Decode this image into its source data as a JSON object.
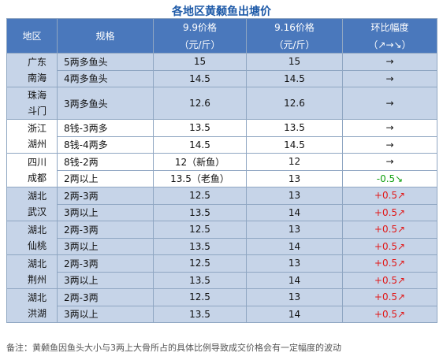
{
  "title": "各地区黄颡鱼出塘价",
  "headers": {
    "region": "地区",
    "spec": "规格",
    "price1_line1": "9.9价格",
    "price1_line2": "（元/斤）",
    "price2_line1": "9.16价格",
    "price2_line2": "（元/斤）",
    "change_line1": "环比幅度",
    "change_line2": "（↗→↘）"
  },
  "groups": [
    {
      "region": "广东\n南海",
      "shade": "blue",
      "rows": [
        {
          "spec": "5两多鱼头",
          "p1": "15",
          "p2": "15",
          "change": "→",
          "trend": "flat"
        },
        {
          "spec": "4两多鱼头",
          "p1": "14.5",
          "p2": "14.5",
          "change": "→",
          "trend": "flat"
        }
      ]
    },
    {
      "region": "珠海\n斗门",
      "shade": "blue",
      "rows": [
        {
          "spec": "3两多鱼头",
          "p1": "12.6",
          "p2": "12.6",
          "change": "→",
          "trend": "flat"
        }
      ]
    },
    {
      "region": "浙江\n湖州",
      "shade": "white",
      "rows": [
        {
          "spec": "8钱-3两多",
          "p1": "13.5",
          "p2": "13.5",
          "change": "→",
          "trend": "flat"
        },
        {
          "spec": "8钱-4两多",
          "p1": "14.5",
          "p2": "14.5",
          "change": "→",
          "trend": "flat"
        }
      ]
    },
    {
      "region": "四川\n成都",
      "shade": "white",
      "rows": [
        {
          "spec": "8钱-2两",
          "p1": "12（新鱼）",
          "p2": "12",
          "change": "→",
          "trend": "flat"
        },
        {
          "spec": "2两以上",
          "p1": "13.5（老鱼）",
          "p2": "13",
          "change": "-0.5↘",
          "trend": "down"
        }
      ]
    },
    {
      "region": "湖北\n武汉",
      "shade": "blue",
      "rows": [
        {
          "spec": "2两-3两",
          "p1": "12.5",
          "p2": "13",
          "change": "+0.5↗",
          "trend": "up"
        },
        {
          "spec": "3两以上",
          "p1": "13.5",
          "p2": "14",
          "change": "+0.5↗",
          "trend": "up"
        }
      ]
    },
    {
      "region": "湖北\n仙桃",
      "shade": "blue",
      "rows": [
        {
          "spec": "2两-3两",
          "p1": "12.5",
          "p2": "13",
          "change": "+0.5↗",
          "trend": "up"
        },
        {
          "spec": "3两以上",
          "p1": "13.5",
          "p2": "14",
          "change": "+0.5↗",
          "trend": "up"
        }
      ]
    },
    {
      "region": "湖北\n荆州",
      "shade": "blue",
      "rows": [
        {
          "spec": "2两-3两",
          "p1": "12.5",
          "p2": "13",
          "change": "+0.5↗",
          "trend": "up"
        },
        {
          "spec": "3两以上",
          "p1": "13.5",
          "p2": "14",
          "change": "+0.5↗",
          "trend": "up"
        }
      ]
    },
    {
      "region": "湖北\n洪湖",
      "shade": "blue",
      "rows": [
        {
          "spec": "2两-3两",
          "p1": "12.5",
          "p2": "13",
          "change": "+0.5↗",
          "trend": "up"
        },
        {
          "spec": "3两以上",
          "p1": "13.5",
          "p2": "14",
          "change": "+0.5↗",
          "trend": "up"
        }
      ]
    }
  ],
  "note": "备注：黄颡鱼因鱼头大小与3两上大骨所占的具体比例导致成交价格会有一定幅度的波动"
}
